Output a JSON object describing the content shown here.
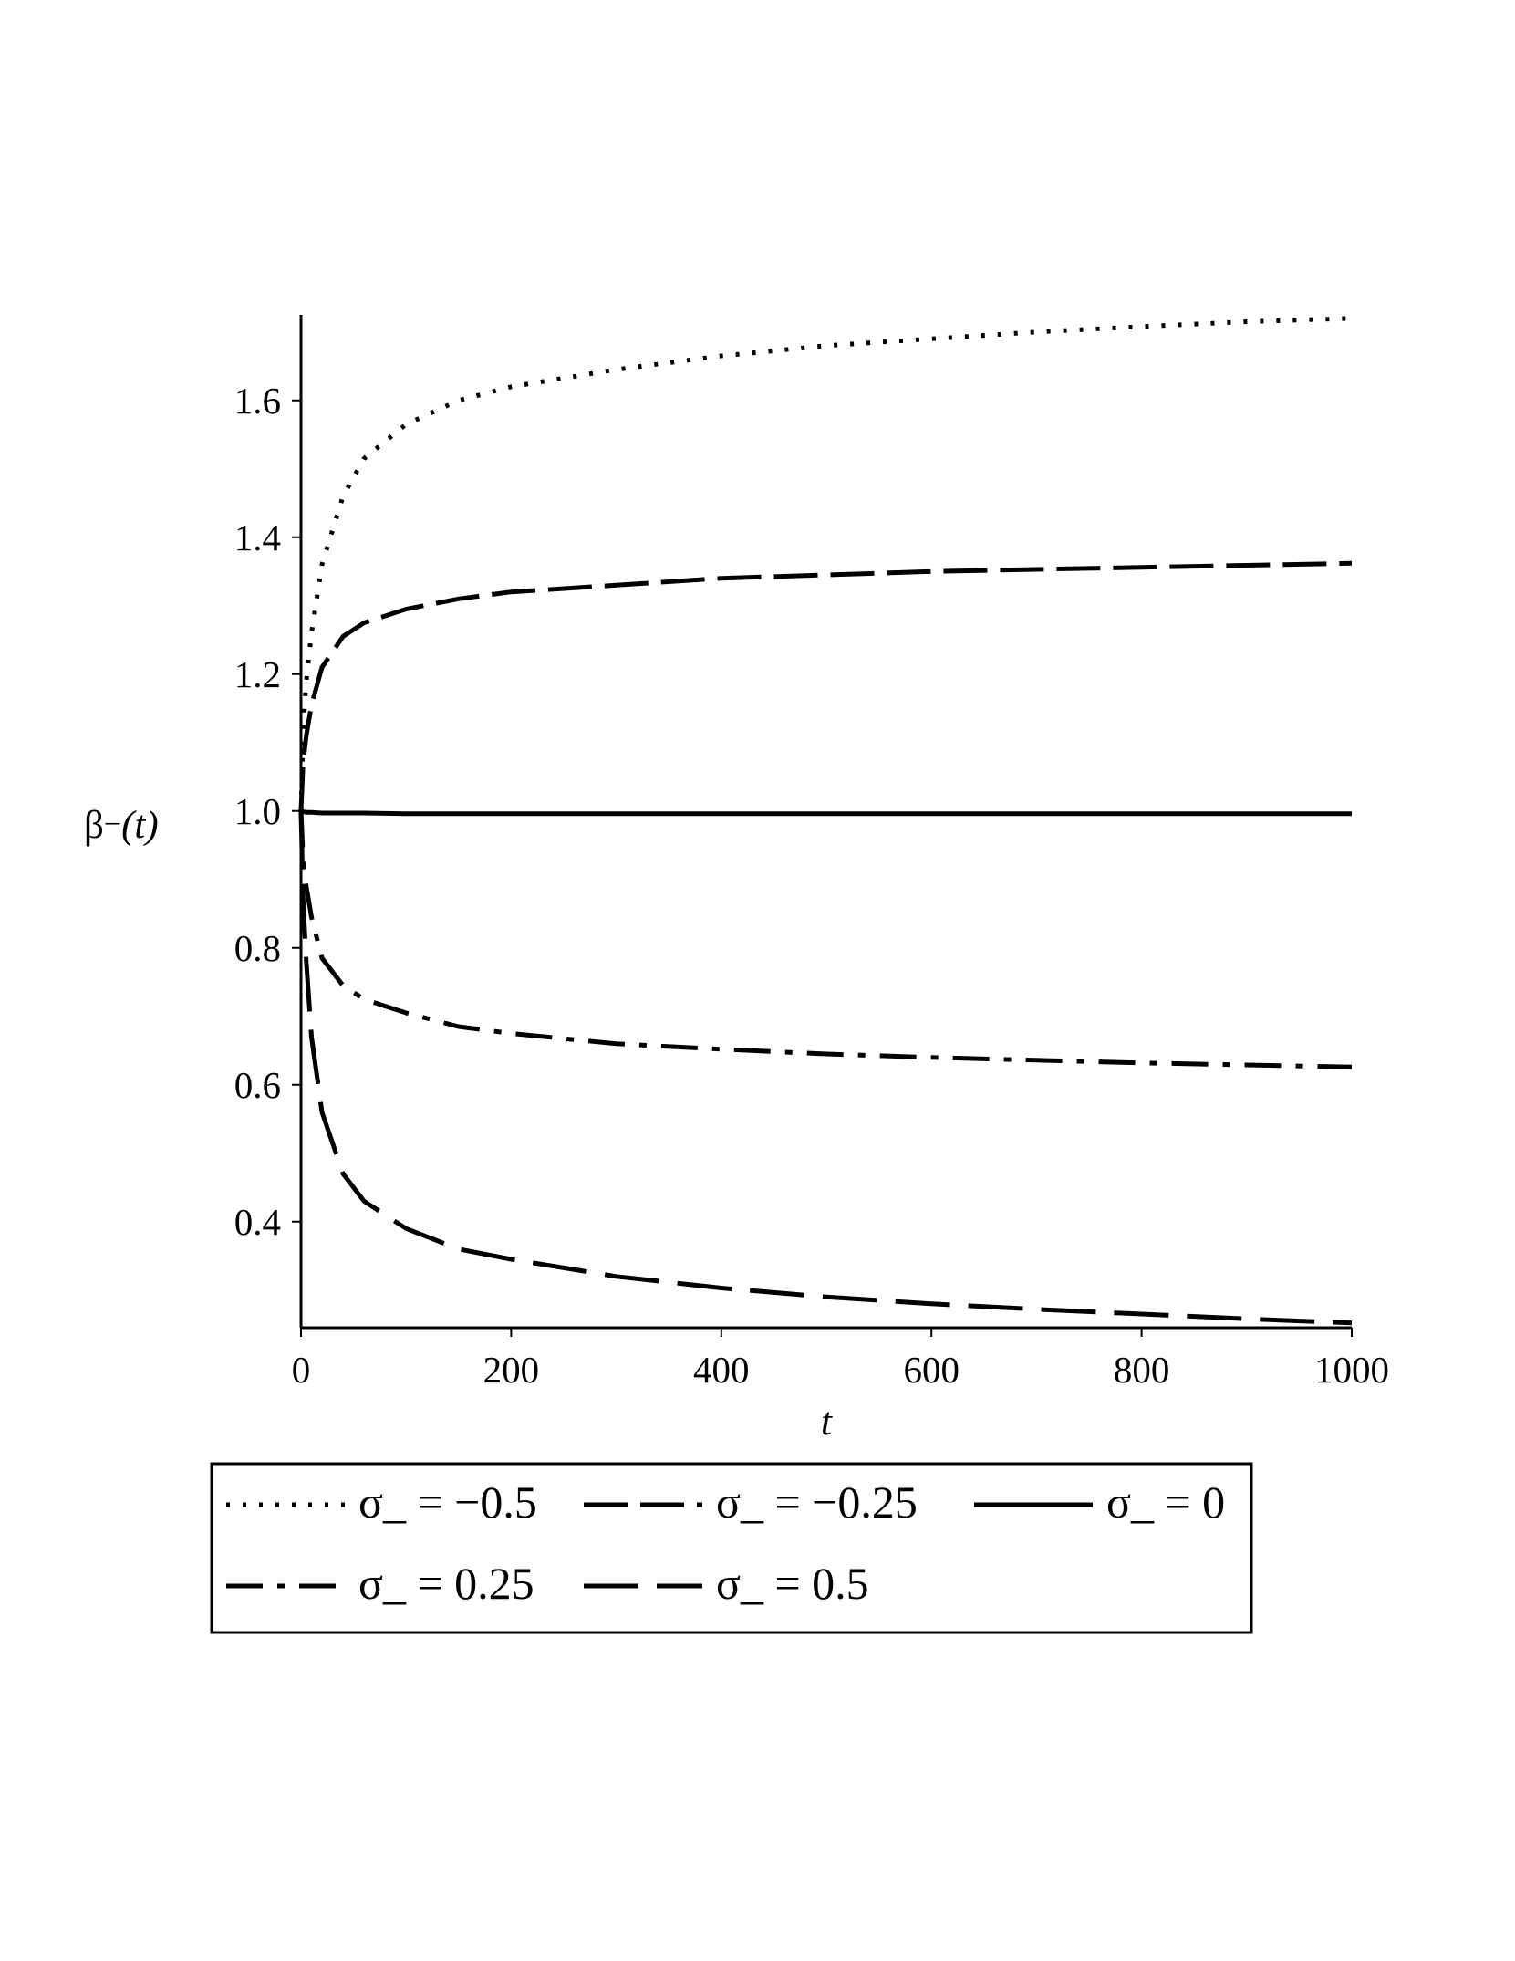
{
  "chart_data": {
    "type": "line",
    "title": "",
    "xlabel": "t",
    "ylabel_parts": {
      "symbol": "β",
      "sub": "−",
      "arg": "(t)"
    },
    "xlim": [
      0,
      1000
    ],
    "ylim": [
      0.245,
      1.725
    ],
    "x_ticks": [
      0,
      200,
      400,
      600,
      800,
      1000
    ],
    "x_tick_labels": [
      "0",
      "200",
      "400",
      "600",
      "800",
      "1000"
    ],
    "y_ticks": [
      0.4,
      0.6,
      0.8,
      1.0,
      1.2,
      1.4,
      1.6
    ],
    "y_tick_labels": [
      "0.4",
      "0.6",
      "0.8",
      "1.0",
      "1.2",
      "1.4",
      "1.6"
    ],
    "grid": false,
    "legend_position": "bottom",
    "x": [
      0,
      2,
      5,
      10,
      20,
      40,
      60,
      100,
      150,
      200,
      300,
      400,
      500,
      600,
      700,
      800,
      900,
      1000
    ],
    "series": [
      {
        "name": "σ_ = −0.5",
        "style": "dotted",
        "values": [
          1.0,
          1.12,
          1.19,
          1.26,
          1.36,
          1.46,
          1.515,
          1.565,
          1.6,
          1.62,
          1.645,
          1.665,
          1.68,
          1.69,
          1.7,
          1.708,
          1.715,
          1.72
        ]
      },
      {
        "name": "σ_ = −0.25",
        "style": "dashed",
        "values": [
          1.0,
          1.07,
          1.11,
          1.155,
          1.21,
          1.255,
          1.275,
          1.295,
          1.31,
          1.32,
          1.33,
          1.34,
          1.345,
          1.35,
          1.353,
          1.356,
          1.359,
          1.362
        ]
      },
      {
        "name": "σ_ = 0",
        "style": "solid",
        "values": [
          1.0,
          0.999,
          0.998,
          0.998,
          0.997,
          0.997,
          0.997,
          0.996,
          0.996,
          0.996,
          0.996,
          0.996,
          0.996,
          0.996,
          0.996,
          0.996,
          0.996,
          0.996
        ]
      },
      {
        "name": "σ_ = 0.25",
        "style": "dashdot",
        "values": [
          1.0,
          0.93,
          0.89,
          0.845,
          0.785,
          0.745,
          0.725,
          0.705,
          0.685,
          0.675,
          0.66,
          0.652,
          0.645,
          0.64,
          0.636,
          0.632,
          0.629,
          0.626
        ]
      },
      {
        "name": "σ_ = 0.5",
        "style": "longdash",
        "values": [
          1.0,
          0.87,
          0.78,
          0.67,
          0.56,
          0.47,
          0.43,
          0.39,
          0.36,
          0.345,
          0.32,
          0.303,
          0.29,
          0.28,
          0.272,
          0.265,
          0.258,
          0.252
        ]
      }
    ]
  }
}
